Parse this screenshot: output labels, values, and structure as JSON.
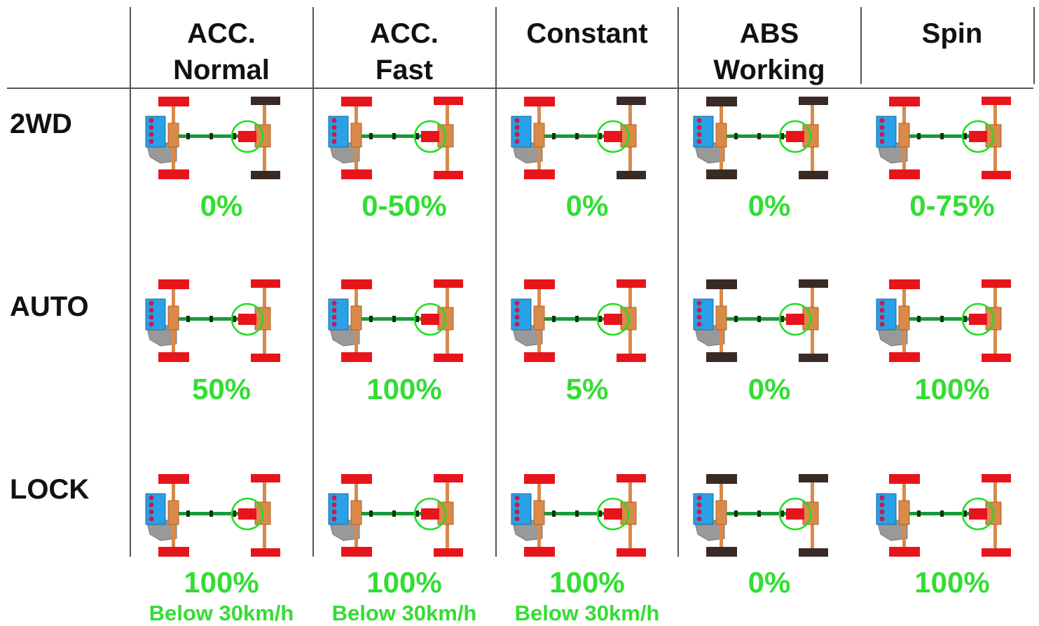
{
  "colors": {
    "active_wheel": "#e8141b",
    "inactive_wheel": "#3a2a26",
    "axle": "#d98a4a",
    "driveshaft": "#1a9a3a",
    "highlight_ring": "#22dd22",
    "engine": "#2aa0e6",
    "gearbox": "#999999",
    "text_percent": "#33dd33"
  },
  "headers": [
    {
      "line1": "ACC.",
      "line2": "Normal"
    },
    {
      "line1": "ACC.",
      "line2": "Fast"
    },
    {
      "line1": "Constant",
      "line2": ""
    },
    {
      "line1": "ABS",
      "line2": "Working"
    },
    {
      "line1": "Spin",
      "line2": ""
    }
  ],
  "rows": [
    {
      "label": "2WD",
      "cells": [
        {
          "value": "0%",
          "note": "",
          "front_active": true,
          "rear_active": false
        },
        {
          "value": "0-50%",
          "note": "",
          "front_active": true,
          "rear_active": true
        },
        {
          "value": "0%",
          "note": "",
          "front_active": true,
          "rear_active": false
        },
        {
          "value": "0%",
          "note": "",
          "front_active": false,
          "rear_active": false
        },
        {
          "value": "0-75%",
          "note": "",
          "front_active": true,
          "rear_active": true
        }
      ]
    },
    {
      "label": "AUTO",
      "cells": [
        {
          "value": "50%",
          "note": "",
          "front_active": true,
          "rear_active": true
        },
        {
          "value": "100%",
          "note": "",
          "front_active": true,
          "rear_active": true
        },
        {
          "value": "5%",
          "note": "",
          "front_active": true,
          "rear_active": true
        },
        {
          "value": "0%",
          "note": "",
          "front_active": false,
          "rear_active": false
        },
        {
          "value": "100%",
          "note": "",
          "front_active": true,
          "rear_active": true
        }
      ]
    },
    {
      "label": "LOCK",
      "cells": [
        {
          "value": "100%",
          "note": "Below 30km/h",
          "front_active": true,
          "rear_active": true
        },
        {
          "value": "100%",
          "note": "Below 30km/h",
          "front_active": true,
          "rear_active": true
        },
        {
          "value": "100%",
          "note": "Below 30km/h",
          "front_active": true,
          "rear_active": true
        },
        {
          "value": "0%",
          "note": "",
          "front_active": false,
          "rear_active": false
        },
        {
          "value": "100%",
          "note": "",
          "front_active": true,
          "rear_active": true
        }
      ]
    }
  ]
}
